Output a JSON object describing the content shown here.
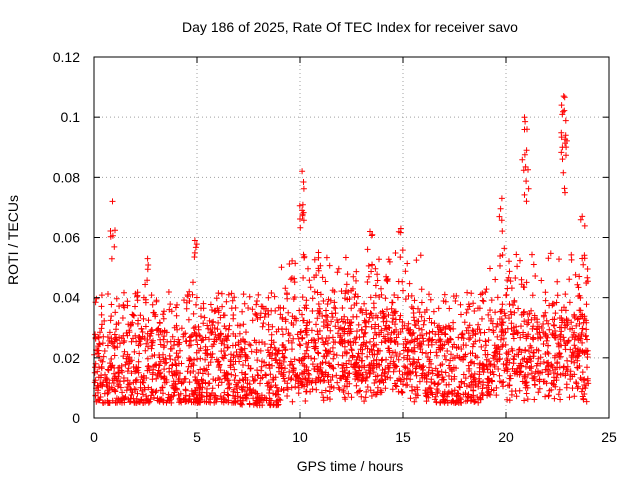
{
  "chart_data": {
    "type": "scatter",
    "title": "Day 186 of 2025, Rate Of TEC Index for receiver savo",
    "xlabel": "GPS time / hours",
    "ylabel": "ROTI / TECUs",
    "xlim": [
      0,
      25
    ],
    "ylim": [
      0,
      0.12
    ],
    "x_ticks": [
      "0",
      "5",
      "10",
      "15",
      "20",
      "25"
    ],
    "y_ticks": [
      "0",
      "0.02",
      "0.04",
      "0.06",
      "0.08",
      "0.1",
      "0.12"
    ],
    "grid": true,
    "marker": "+",
    "color": "#ff0000",
    "series": [
      {
        "name": "ROTI",
        "x_range": [
          0,
          24
        ],
        "baseline_band": [
          0.005,
          0.03
        ],
        "notable_points": [
          {
            "x": 0.9,
            "y": 0.072
          },
          {
            "x": 2.6,
            "y": 0.053
          },
          {
            "x": 4.9,
            "y": 0.059
          },
          {
            "x": 10.1,
            "y": 0.082
          },
          {
            "x": 10.1,
            "y": 0.069
          },
          {
            "x": 10.9,
            "y": 0.055
          },
          {
            "x": 13.4,
            "y": 0.062
          },
          {
            "x": 14.9,
            "y": 0.063
          },
          {
            "x": 19.8,
            "y": 0.073
          },
          {
            "x": 20.9,
            "y": 0.1
          },
          {
            "x": 21.0,
            "y": 0.089
          },
          {
            "x": 22.7,
            "y": 0.104
          },
          {
            "x": 22.8,
            "y": 0.107
          },
          {
            "x": 22.9,
            "y": 0.094
          },
          {
            "x": 23.7,
            "y": 0.067
          }
        ]
      }
    ]
  }
}
